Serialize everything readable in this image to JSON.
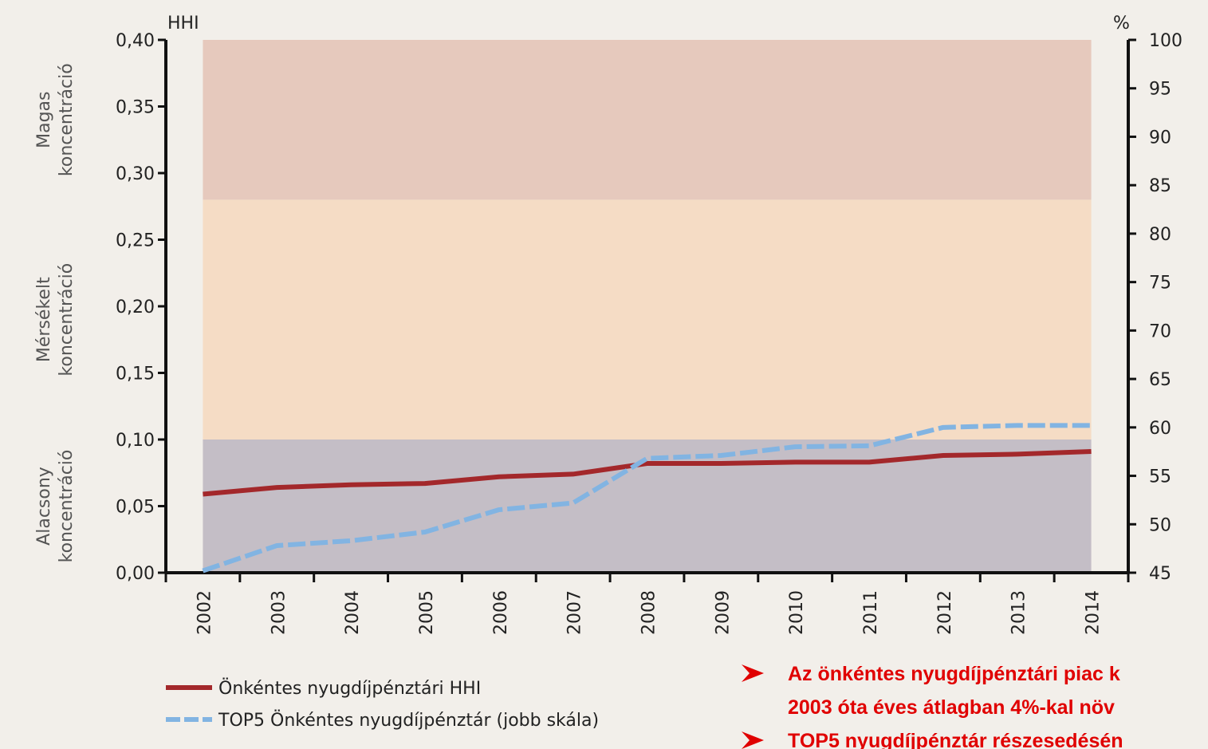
{
  "chart_data": {
    "type": "line",
    "y_axis_title": "HHI",
    "y2_axis_title": "%",
    "categories": [
      "2002",
      "2003",
      "2004",
      "2005",
      "2006",
      "2007",
      "2008",
      "2009",
      "2010",
      "2011",
      "2012",
      "2013",
      "2014"
    ],
    "series": [
      {
        "name": "Önkéntes nyugdíjpénztári HHI",
        "color": "#a3282b",
        "dash": false,
        "values": [
          0.059,
          0.064,
          0.066,
          0.067,
          0.072,
          0.074,
          0.082,
          0.082,
          0.083,
          0.083,
          0.088,
          0.089,
          0.091
        ]
      },
      {
        "name": "TOP5 Önkéntes nyugdíjpénztár (jobb skála)",
        "color": "#82b4e2",
        "dash": true,
        "axis": "y2",
        "values": [
          45.2,
          47.8,
          48.3,
          49.2,
          51.5,
          52.2,
          56.8,
          57.1,
          58.0,
          58.1,
          60.0,
          60.2,
          60.2
        ]
      }
    ],
    "bands": [
      {
        "lines": [
          "Alacsony",
          "koncentráció"
        ],
        "from": 0,
        "to": 0.1,
        "color": "#c4bec6"
      },
      {
        "lines": [
          "Mérsékelt",
          "koncentráció"
        ],
        "from": 0.1,
        "to": 0.28,
        "color": "#f5dcc5"
      },
      {
        "lines": [
          "Magas",
          "koncentráció"
        ],
        "from": 0.28,
        "to": 0.4,
        "color": "#e6c9bd"
      }
    ],
    "ylim": [
      0,
      0.4
    ],
    "yticks": [
      {
        "value": 0,
        "label": "0,00"
      },
      {
        "value": 0.05,
        "label": "0,05"
      },
      {
        "value": 0.1,
        "label": "0,10"
      },
      {
        "value": 0.15,
        "label": "0,15"
      },
      {
        "value": 0.2,
        "label": "0,20"
      },
      {
        "value": 0.25,
        "label": "0,25"
      },
      {
        "value": 0.3,
        "label": "0,30"
      },
      {
        "value": 0.35,
        "label": "0,35"
      },
      {
        "value": 0.4,
        "label": "0,40"
      }
    ],
    "y2lim": [
      45,
      100
    ],
    "y2ticks": [
      45,
      50,
      55,
      60,
      65,
      70,
      75,
      80,
      85,
      90,
      95,
      100
    ],
    "legend": "bottom-left",
    "annotations": [
      "Az önkéntes nyugdíjpénztári piac k",
      "2003 óta éves átlagban 4%-kal növ",
      "TOP5 nyugdíjpénztár részesedésén"
    ]
  }
}
